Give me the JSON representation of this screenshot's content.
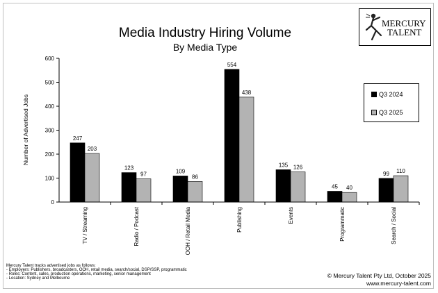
{
  "chart_data": {
    "type": "bar",
    "title": "Media Industry Hiring Volume",
    "subtitle": "By Media Type",
    "ylabel": "Number of Advertised Jobs",
    "xlabel": "",
    "ylim": [
      0,
      600
    ],
    "yticks": [
      0,
      100,
      200,
      300,
      400,
      500,
      600
    ],
    "grid": false,
    "legend_position": "right",
    "categories": [
      "TV / Streaming",
      "Radio / Podcast",
      "OOH / Retail Media",
      "Publishing",
      "Events",
      "Programmatic",
      "Search / Social"
    ],
    "series": [
      {
        "name": "Q3 2024",
        "color": "#000000",
        "values": [
          247,
          123,
          109,
          554,
          135,
          45,
          99
        ]
      },
      {
        "name": "Q3 2025",
        "color": "#b3b3b3",
        "values": [
          203,
          97,
          86,
          438,
          126,
          40,
          110
        ]
      }
    ]
  },
  "logo": {
    "line1": "MERCURY",
    "line2": "TALENT"
  },
  "footnote": {
    "lines": [
      "Mercury Talent tracks advertised jobs as follows:",
      "- Employers: Publishers, broadcasters, OOH, retail media, search/social, DSP/SSP, programmatic",
      "- Roles: Content, sales, production operations, marketing, senior management",
      "- Location: Sydney and Melbourne"
    ]
  },
  "copyright": {
    "line1": "© Mercury Talent Pty Ltd, October 2025",
    "line2": "www.mercury-talent.com"
  }
}
